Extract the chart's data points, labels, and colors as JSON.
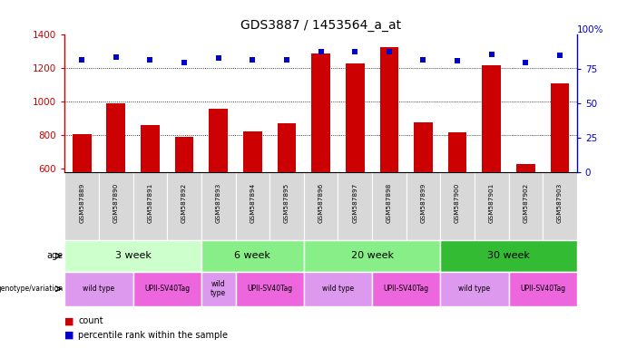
{
  "title": "GDS3887 / 1453564_a_at",
  "samples": [
    "GSM587889",
    "GSM587890",
    "GSM587891",
    "GSM587892",
    "GSM587893",
    "GSM587894",
    "GSM587895",
    "GSM587896",
    "GSM587897",
    "GSM587898",
    "GSM587899",
    "GSM587900",
    "GSM587901",
    "GSM587902",
    "GSM587903"
  ],
  "counts": [
    805,
    993,
    862,
    793,
    960,
    823,
    874,
    1290,
    1230,
    1325,
    876,
    821,
    1220,
    630,
    1110
  ],
  "percentile_ranks": [
    82,
    84,
    82,
    80,
    83,
    82,
    82,
    88,
    88,
    88,
    82,
    81,
    86,
    80,
    85
  ],
  "ymin": 580,
  "ymax": 1400,
  "yticks": [
    600,
    800,
    1000,
    1200,
    1400
  ],
  "right_yticks": [
    0,
    25,
    50,
    75
  ],
  "bar_color": "#cc0000",
  "dot_color": "#0000cc",
  "age_groups": [
    {
      "label": "3 week",
      "start": 0,
      "end": 4,
      "color": "#ccffcc"
    },
    {
      "label": "6 week",
      "start": 4,
      "end": 7,
      "color": "#88ee88"
    },
    {
      "label": "20 week",
      "start": 7,
      "end": 11,
      "color": "#88ee88"
    },
    {
      "label": "30 week",
      "start": 11,
      "end": 15,
      "color": "#33bb33"
    }
  ],
  "genotype_groups": [
    {
      "label": "wild type",
      "start": 0,
      "end": 2,
      "color": "#dd99ee"
    },
    {
      "label": "UPII-SV40Tag",
      "start": 2,
      "end": 4,
      "color": "#ee66dd"
    },
    {
      "label": "wild\ntype",
      "start": 4,
      "end": 5,
      "color": "#dd99ee"
    },
    {
      "label": "UPII-SV40Tag",
      "start": 5,
      "end": 7,
      "color": "#ee66dd"
    },
    {
      "label": "wild type",
      "start": 7,
      "end": 9,
      "color": "#dd99ee"
    },
    {
      "label": "UPII-SV40Tag",
      "start": 9,
      "end": 11,
      "color": "#ee66dd"
    },
    {
      "label": "wild type",
      "start": 11,
      "end": 13,
      "color": "#dd99ee"
    },
    {
      "label": "UPII-SV40Tag",
      "start": 13,
      "end": 15,
      "color": "#ee66dd"
    }
  ],
  "left_color": "#cc0000",
  "right_color": "#0000cc",
  "sample_bg": "#d8d8d8"
}
